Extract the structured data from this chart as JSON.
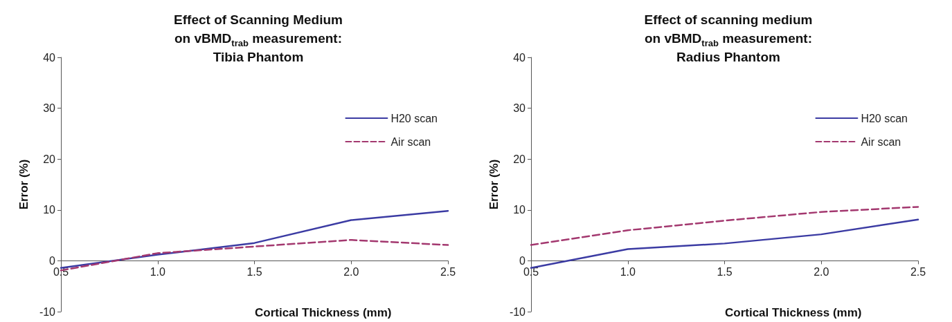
{
  "chart_data": [
    {
      "type": "line",
      "title": "Effect of Scanning Medium\non vBMD$_{trab}$ measurement:\nTibia Phantom",
      "xlabel": "Cortical Thickness (mm)",
      "ylabel": "Error (%)",
      "x": [
        0.5,
        1.0,
        1.5,
        2.0,
        2.5
      ],
      "series": [
        {
          "name": "H20 scan",
          "color": "#3b3ba3",
          "values": [
            -1.4,
            1.2,
            3.5,
            8.0,
            9.8
          ],
          "line_style": "solid"
        },
        {
          "name": "Air scan",
          "color": "#a3386f",
          "values": [
            -1.9,
            1.5,
            2.8,
            4.1,
            3.1
          ],
          "line_style": "dashed"
        }
      ],
      "xlim": [
        0.5,
        2.5
      ],
      "xticks": [
        {
          "value": 0.5,
          "label": "0.5"
        },
        {
          "value": 1.0,
          "label": "1.0"
        },
        {
          "value": 1.5,
          "label": "1.5"
        },
        {
          "value": 2.0,
          "label": "2.0"
        },
        {
          "value": 2.5,
          "label": "2.5"
        }
      ],
      "ylim": [
        -10,
        40
      ],
      "yticks": [
        -10,
        0,
        10,
        20,
        30,
        40
      ],
      "grid": false,
      "legend": "top right",
      "marker": "none"
    },
    {
      "type": "line",
      "title": "Effect of scanning medium\non vBMD$_{trab}$ measurement:\nRadius Phantom",
      "xlabel": "Cortical Thickness (mm)",
      "ylabel": "Error (%)",
      "x": [
        0.5,
        1.0,
        1.5,
        2.0,
        2.5
      ],
      "series": [
        {
          "name": "H20 scan",
          "color": "#3b3ba3",
          "values": [
            -1.4,
            2.3,
            3.4,
            5.2,
            8.1
          ],
          "line_style": "solid"
        },
        {
          "name": "Air scan",
          "color": "#a3386f",
          "values": [
            3.1,
            6.0,
            7.9,
            9.6,
            10.6
          ],
          "line_style": "dashed"
        }
      ],
      "xlim": [
        0.5,
        2.5
      ],
      "xticks": [
        {
          "value": 0.5,
          "label": "0.5"
        },
        {
          "value": 1.0,
          "label": "1.0"
        },
        {
          "value": 1.5,
          "label": "1.5"
        },
        {
          "value": 2.0,
          "label": "2.0"
        },
        {
          "value": 2.5,
          "label": "2.5"
        }
      ],
      "ylim": [
        -10,
        40
      ],
      "yticks": [
        -10,
        0,
        10,
        20,
        30,
        40
      ],
      "grid": false,
      "legend": "top right",
      "marker": "none"
    }
  ]
}
